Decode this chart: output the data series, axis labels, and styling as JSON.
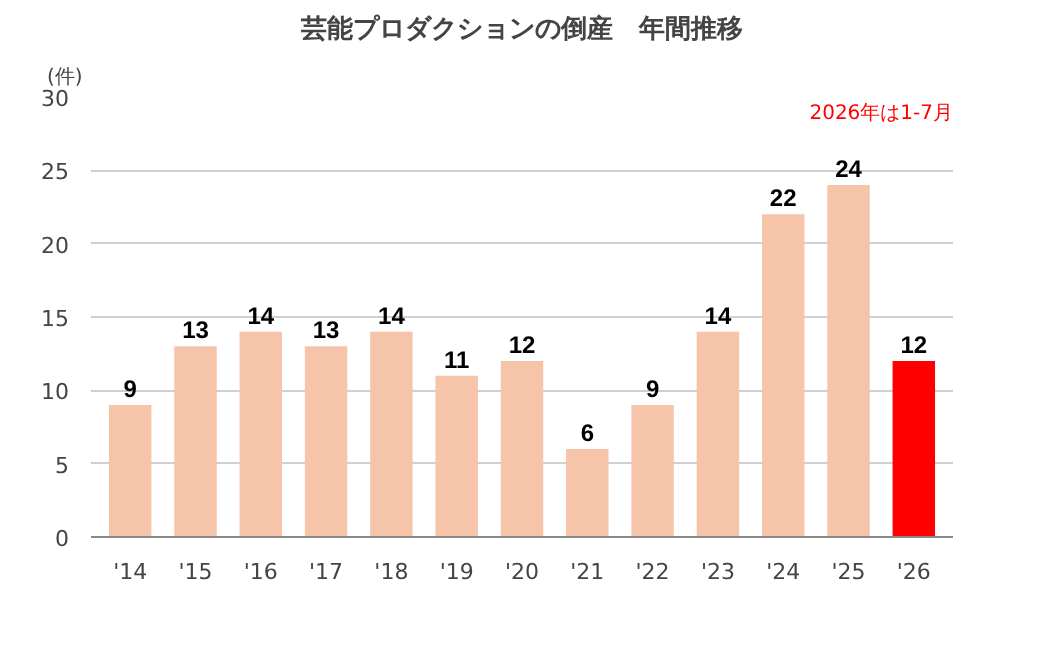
{
  "chart_data": {
    "type": "bar",
    "title": "芸能プロダクションの倒産　年間推移",
    "ylabel": "(件)",
    "annotations": [
      "2026年は1-7月"
    ],
    "categories": [
      "'14",
      "'15",
      "'16",
      "'17",
      "'18",
      "'19",
      "'20",
      "'21",
      "'22",
      "'23",
      "'24",
      "'25",
      "'26"
    ],
    "values": [
      9,
      13,
      14,
      13,
      14,
      11,
      12,
      6,
      9,
      14,
      22,
      24,
      12
    ],
    "colors": [
      "#f6c4a8",
      "#f6c4a8",
      "#f6c4a8",
      "#f6c4a8",
      "#f6c4a8",
      "#f6c4a8",
      "#f6c4a8",
      "#f6c4a8",
      "#f6c4a8",
      "#f6c4a8",
      "#f6c4a8",
      "#f6c4a8",
      "#ff0000"
    ],
    "ylim": [
      0,
      30
    ],
    "yticks": [
      0,
      5,
      10,
      15,
      20,
      25,
      30
    ],
    "grid": "y",
    "data_labels": true
  }
}
